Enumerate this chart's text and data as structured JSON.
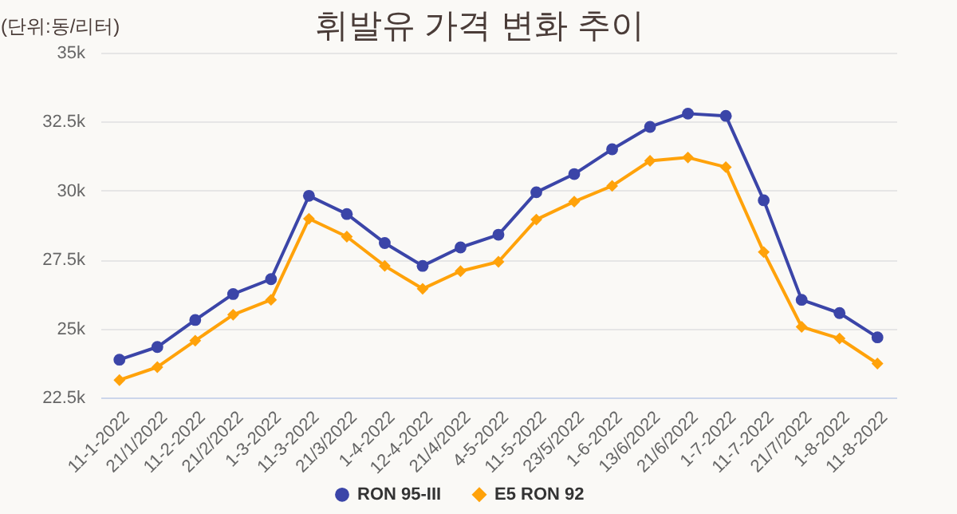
{
  "chart_data": {
    "type": "line",
    "title": "휘발유 가격 변화 추이",
    "ylabel": "(단위:동/리터)",
    "categories": [
      "11-1-2022",
      "21/1/2022",
      "11-2-2022",
      "21/2/2022",
      "1-3-2022",
      "11-3-2022",
      "21/3/2022",
      "1-4-2022",
      "12-4-2022",
      "21/4/2022",
      "4-5-2022",
      "11-5-2022",
      "23/5/2022",
      "1-6-2022",
      "13/6/2022",
      "21/6/2022",
      "1-7-2022",
      "11-7-2022",
      "21/7/2022",
      "1-8-2022",
      "11-8-2022"
    ],
    "series": [
      {
        "name": "RON 95-III",
        "color": "#3b45a8",
        "marker": "circle",
        "values": [
          23870,
          24330,
          25310,
          26250,
          26790,
          29810,
          29150,
          28100,
          27270,
          27940,
          28400,
          29940,
          30600,
          31500,
          32310,
          32790,
          32710,
          29650,
          26040,
          25560,
          24680
        ]
      },
      {
        "name": "E5 RON 92",
        "color": "#ffa20a",
        "marker": "diamond",
        "values": [
          23130,
          23600,
          24560,
          25500,
          26040,
          28980,
          28330,
          27270,
          26440,
          27080,
          27420,
          28950,
          29600,
          30170,
          31080,
          31200,
          30850,
          27770,
          25060,
          24640,
          23730
        ]
      }
    ],
    "ylim": [
      22500,
      35000
    ],
    "yticks": [
      {
        "value": 22500,
        "label": "22.5k"
      },
      {
        "value": 25000,
        "label": "25k"
      },
      {
        "value": 27500,
        "label": "27.5k"
      },
      {
        "value": 30000,
        "label": "30k"
      },
      {
        "value": 32500,
        "label": "32.5k"
      },
      {
        "value": 35000,
        "label": "35k"
      }
    ],
    "grid": "y",
    "legend": "bottom",
    "line_style": "solid"
  }
}
